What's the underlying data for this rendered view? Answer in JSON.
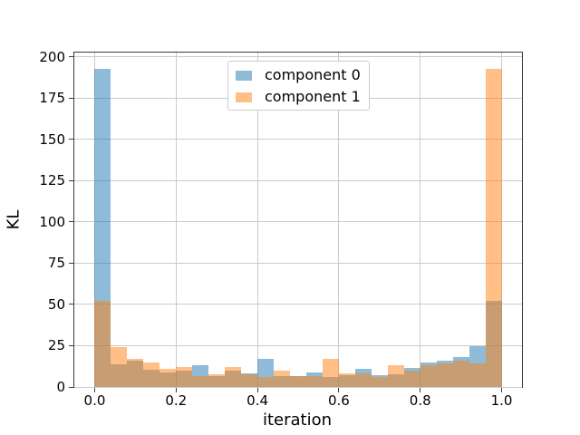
{
  "chart_data": {
    "type": "bar",
    "subtype": "overlapping-histogram",
    "title": "",
    "xlabel": "iteration",
    "ylabel": "KL",
    "xlim": [
      -0.05,
      1.05
    ],
    "ylim": [
      0,
      202.7
    ],
    "grid": true,
    "legend_position": "upper center",
    "bins": {
      "start": 0.0,
      "width": 0.04,
      "count": 25
    },
    "xticks": {
      "values": [
        0.0,
        0.2,
        0.4,
        0.6,
        0.8,
        1.0
      ],
      "labels": [
        "0.0",
        "0.2",
        "0.4",
        "0.6",
        "0.8",
        "1.0"
      ]
    },
    "yticks": {
      "values": [
        0,
        25,
        50,
        75,
        100,
        125,
        150,
        175,
        200
      ],
      "labels": [
        "0",
        "25",
        "50",
        "75",
        "100",
        "125",
        "150",
        "175",
        "200"
      ]
    },
    "series": [
      {
        "name": "component 0",
        "color": "#1f77b4",
        "alpha": 0.5,
        "values": [
          193,
          13.5,
          16,
          10.5,
          9,
          10,
          13,
          6.5,
          10,
          8.5,
          17,
          6.5,
          6.5,
          9,
          6,
          7,
          11,
          7,
          7.5,
          11.5,
          15,
          16,
          18,
          25,
          52
        ]
      },
      {
        "name": "component 1",
        "color": "#ff7f0e",
        "alpha": 0.5,
        "values": [
          52,
          24,
          17,
          15,
          11,
          12,
          6.5,
          7.5,
          12,
          7.5,
          6,
          10,
          6.5,
          6.5,
          17,
          8,
          8,
          6,
          13,
          10,
          13,
          14.5,
          16,
          14.5,
          193
        ]
      }
    ],
    "colors": {
      "grid": "#cacaca",
      "spine": "#3a3a3a",
      "text": "#000000",
      "legend_border": "#cccccc",
      "background": "#ffffff"
    }
  }
}
